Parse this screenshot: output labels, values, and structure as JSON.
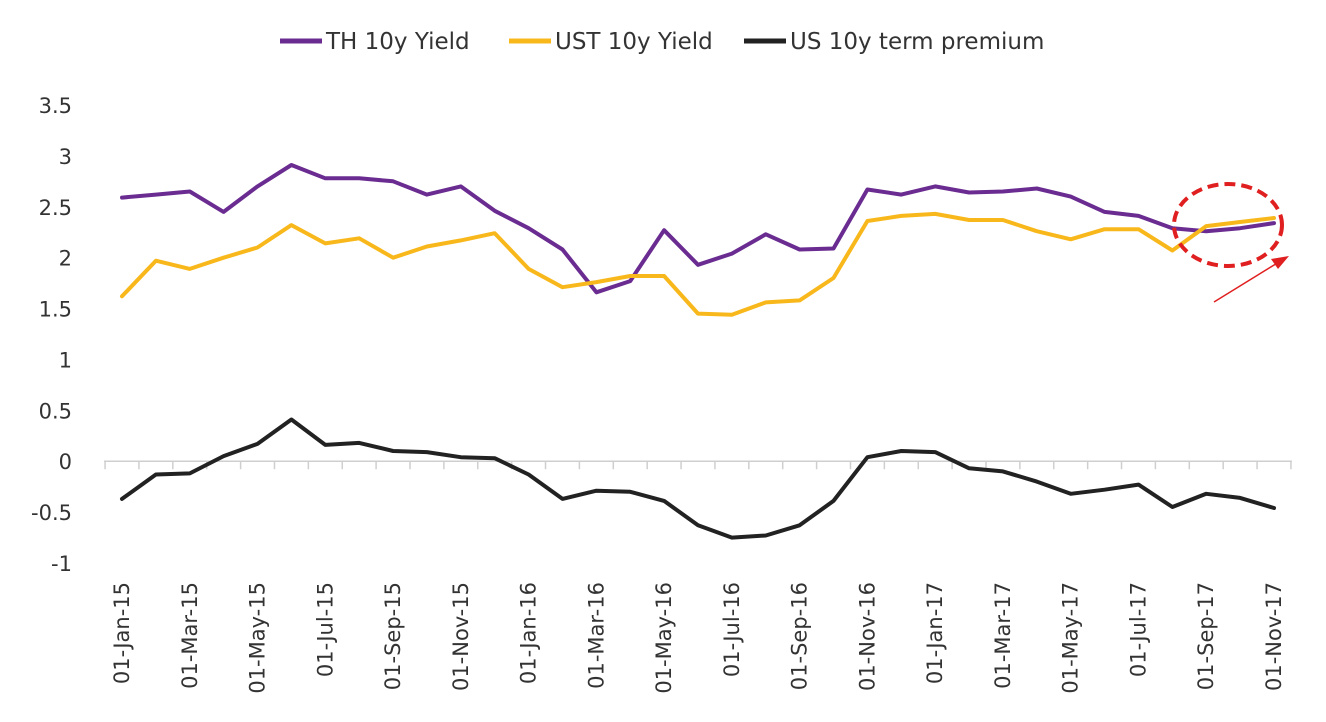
{
  "chart_data": {
    "type": "line",
    "x": [
      "01-Jan-15",
      "01-Feb-15",
      "01-Mar-15",
      "01-Apr-15",
      "01-May-15",
      "01-Jun-15",
      "01-Jul-15",
      "01-Aug-15",
      "01-Sep-15",
      "01-Oct-15",
      "01-Nov-15",
      "01-Dec-15",
      "01-Jan-16",
      "01-Feb-16",
      "01-Mar-16",
      "01-Apr-16",
      "01-May-16",
      "01-Jun-16",
      "01-Jul-16",
      "01-Aug-16",
      "01-Sep-16",
      "01-Oct-16",
      "01-Nov-16",
      "01-Dec-16",
      "01-Jan-17",
      "01-Feb-17",
      "01-Mar-17",
      "01-Apr-17",
      "01-May-17",
      "01-Jun-17",
      "01-Jul-17",
      "01-Aug-17",
      "01-Sep-17",
      "01-Oct-17",
      "01-Nov-17"
    ],
    "x_tick_labels": [
      "01-Jan-15",
      "01-Mar-15",
      "01-May-15",
      "01-Jul-15",
      "01-Sep-15",
      "01-Nov-15",
      "01-Jan-16",
      "01-Mar-16",
      "01-May-16",
      "01-Jul-16",
      "01-Sep-16",
      "01-Nov-16",
      "01-Jan-17",
      "01-Mar-17",
      "01-May-17",
      "01-Jul-17",
      "01-Sep-17",
      "01-Nov-17"
    ],
    "y_ticks": [
      "3.5",
      "3",
      "2.5",
      "2",
      "1.5",
      "1",
      "0.5",
      "0",
      "-0.5",
      "-1"
    ],
    "ylim": [
      -1,
      3.5
    ],
    "grid": false,
    "legend_position": "top",
    "series": [
      {
        "name": "TH 10y Yield",
        "color": "#6a2c91",
        "values": [
          2.59,
          2.62,
          2.65,
          2.45,
          2.7,
          2.91,
          2.78,
          2.78,
          2.75,
          2.62,
          2.7,
          2.46,
          2.29,
          2.08,
          1.66,
          1.77,
          2.27,
          1.93,
          2.04,
          2.23,
          2.08,
          2.09,
          2.67,
          2.62,
          2.7,
          2.64,
          2.65,
          2.68,
          2.6,
          2.45,
          2.41,
          2.29,
          2.26,
          2.29,
          2.34
        ]
      },
      {
        "name": "UST 10y Yield",
        "color": "#f8b81c",
        "values": [
          1.62,
          1.97,
          1.89,
          2.0,
          2.1,
          2.32,
          2.14,
          2.19,
          2.0,
          2.11,
          2.17,
          2.24,
          1.89,
          1.71,
          1.76,
          1.82,
          1.82,
          1.45,
          1.44,
          1.56,
          1.58,
          1.8,
          2.36,
          2.41,
          2.43,
          2.37,
          2.37,
          2.26,
          2.18,
          2.28,
          2.28,
          2.07,
          2.31,
          2.35,
          2.39
        ]
      },
      {
        "name": "US 10y term premium",
        "color": "#222222",
        "values": [
          -0.37,
          -0.13,
          -0.12,
          0.05,
          0.17,
          0.41,
          0.16,
          0.18,
          0.1,
          0.09,
          0.04,
          0.03,
          -0.13,
          -0.37,
          -0.29,
          -0.3,
          -0.39,
          -0.63,
          -0.75,
          -0.73,
          -0.63,
          -0.39,
          0.04,
          0.1,
          0.09,
          -0.07,
          -0.1,
          -0.2,
          -0.32,
          -0.28,
          -0.23,
          -0.45,
          -0.32,
          -0.36,
          -0.46
        ]
      }
    ],
    "annotations": [
      {
        "type": "dashed-ellipse",
        "color": "#e02020"
      },
      {
        "type": "arrow",
        "color": "#e02020"
      }
    ]
  }
}
